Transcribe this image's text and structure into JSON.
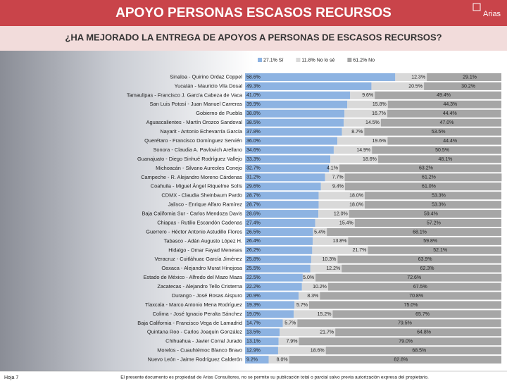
{
  "header": {
    "title": "APOYO PERSONAS ESCASOS RECURSOS",
    "logo": "Arias"
  },
  "chart_data": {
    "type": "stacked-barh",
    "title": "¿HA MEJORADO LA ENTREGA DE APOYOS A PERSONAS DE ESCASOS RECURSOS?",
    "categories": [
      "Sinaloa - Quirino Ordaz Coppel",
      "Yucatán - Mauricio Vila Dosal",
      "Tamaulipas - Francisco J. García Cabeza de Vaca",
      "San Luis Potosí - Juan Manuel Carreras",
      "Gobierno de Puebla",
      "Aguascalientes - Martín Orozco Sandoval",
      "Nayarit - Antonio Echevarría García",
      "Querétaro - Francisco Domínguez Servién",
      "Sonora - Claudia A. Pavlovich Arellano",
      "Guanajuato - Diego Sinhué Rodríguez Vallejo",
      "Michoacán - Silvano Aureoles Conejo",
      "Campeche - R. Alejandro Moreno Cárdenas",
      "Coahuila - Miguel Ángel Riquelme Solís",
      "CDMX - Claudia Sheinbaum Pardo",
      "Jalisco - Enrique Alfaro Ramírez",
      "Baja California Sur - Carlos Mendoza Davis",
      "Chiapas - Rutilio Escandón Cadenas",
      "Guerrero - Héctor Antonio Astudillo Flores",
      "Tabasco - Adán Augusto López H.",
      "Hidalgo - Omar Fayad Meneses",
      "Veracruz - Cuitláhuac García Jiménez",
      "Oaxaca - Alejandro Murat Hinojosa",
      "Estado de México - Alfredo del Mazo Maza",
      "Zacatecas - Alejandro Tello Cristerna",
      "Durango - José Rosas Aispuro",
      "Tlaxcala - Marco Antonio Mena Rodríguez",
      "Colima - José Ignacio Peralta Sánchez",
      "Baja California - Francisco Vega de Lamadrid",
      "Quintana Roo - Carlos Joaquín González",
      "Chihuahua - Javier Corral Jurado",
      "Morelos - Cuauhtémoc Blanco Bravo",
      "Nuevo León - Jaime Rodríguez Calderón"
    ],
    "series": [
      {
        "name": "27.1% Sí",
        "color": "#8db3e2",
        "values": [
          58.6,
          49.3,
          41.0,
          39.9,
          38.8,
          38.5,
          37.8,
          36.0,
          34.6,
          33.3,
          32.7,
          31.2,
          29.6,
          28.7,
          28.7,
          28.6,
          27.4,
          26.5,
          26.4,
          26.2,
          25.8,
          25.5,
          22.5,
          22.2,
          20.9,
          19.3,
          19.0,
          14.7,
          13.5,
          13.1,
          12.9,
          9.2
        ],
        "value_labels": [
          "58.6%",
          "49.3%",
          "41.0%",
          "39.9%",
          "38.8%",
          "38.5%",
          "37.8%",
          "36.0%",
          "34.6%",
          "33.3%",
          "32.7%",
          "31.2%",
          "29.6%",
          "28.7%",
          "28.7%",
          "28.6%",
          "27.4%",
          "26.5%",
          "26.4%",
          "26.2%",
          "25.8%",
          "25.5%",
          "22.5%",
          "22.2%",
          "20.9%",
          "19.3%",
          "19.0%",
          "14.7%",
          "13.5%",
          "13.1%",
          "12.9%",
          "9.2%"
        ]
      },
      {
        "name": "11.8% No lo sé",
        "color": "#d9d9d9",
        "values": [
          12.3,
          20.5,
          9.6,
          15.8,
          16.7,
          14.5,
          8.7,
          19.6,
          14.9,
          18.6,
          4.1,
          7.7,
          9.4,
          18.0,
          18.0,
          12.0,
          15.4,
          5.4,
          13.8,
          21.7,
          10.3,
          12.2,
          5.0,
          10.2,
          8.3,
          5.7,
          15.2,
          5.7,
          21.7,
          7.9,
          18.6,
          8.0
        ],
        "value_labels": [
          "12.3%",
          "20.5%",
          "9.6%",
          "15.8%",
          "16.7%",
          "14.5%",
          "8.7%",
          "19.6%",
          "14.9%",
          "18.6%",
          "4.1%",
          "7.7%",
          "9.4%",
          "18.0%",
          "18.0%",
          "12.0%",
          "15.4%",
          "5.4%",
          "13.8%",
          "21.7%",
          "10.3%",
          "12.2%",
          "5.0%",
          "10.2%",
          "8.3%",
          "5.7%",
          "15.2%",
          "5.7%",
          "21.7%",
          "7.9%",
          "18.6%",
          "8.0%"
        ]
      },
      {
        "name": "61.2% No",
        "color": "#a6a6a6",
        "values": [
          29.1,
          30.2,
          49.4,
          44.3,
          44.4,
          47.0,
          53.5,
          44.4,
          50.5,
          48.1,
          63.2,
          61.2,
          61.0,
          53.3,
          53.3,
          59.4,
          57.2,
          68.1,
          59.8,
          52.1,
          63.9,
          62.3,
          72.6,
          67.5,
          70.8,
          75.0,
          65.7,
          79.5,
          64.8,
          79.0,
          68.5,
          82.8
        ],
        "value_labels": [
          "29.1%",
          "30.2%",
          "49.4%",
          "44.3%",
          "44.4%",
          "47.0%",
          "53.5%",
          "44.4%",
          "50.5%",
          "48.1%",
          "63.2%",
          "61.2%",
          "61.0%",
          "53.3%",
          "53.3%",
          "59.4%",
          "57.2%",
          "68.1%",
          "59.8%",
          "52.1%",
          "63.9%",
          "62.3%",
          "72.6%",
          "67.5%",
          "70.8%",
          "75.0%",
          "65.7%",
          "79.5%",
          "64.8%",
          "79.0%",
          "68.5%",
          "82.8%"
        ]
      }
    ],
    "xlim": [
      0,
      100
    ]
  },
  "footer": {
    "page": "Hoja 7",
    "note": "El presente documento es propiedad de Arias Consultores, no se permite su publicación total o parcial salvo previa autorización expresa del propietario."
  }
}
